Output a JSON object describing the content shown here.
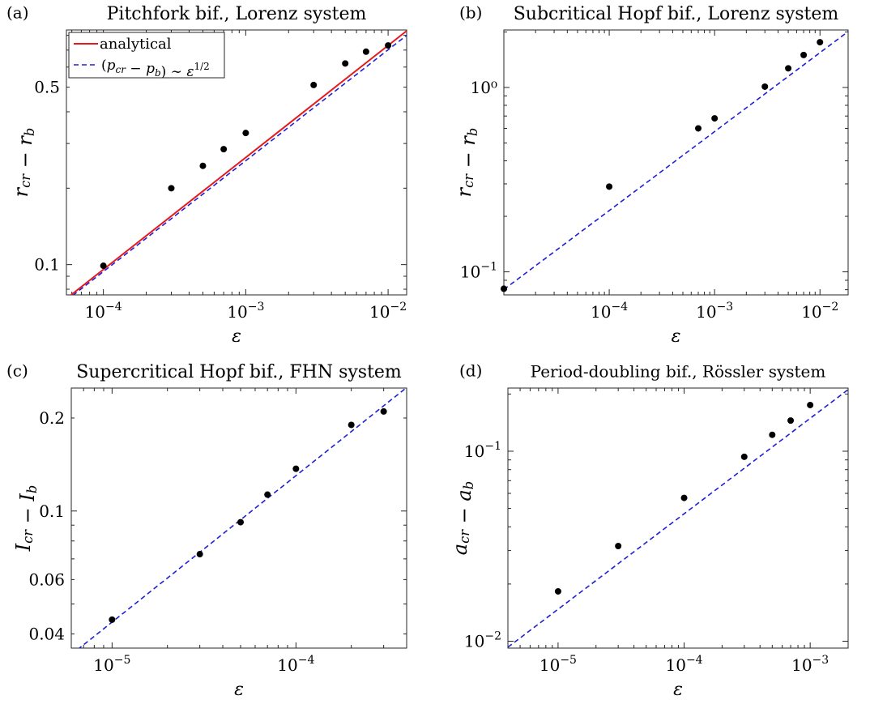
{
  "chart_data": [
    {
      "panel_label": "(a)",
      "type": "scatter",
      "title": "Pitchfork bif., Lorenz system",
      "xlabel": "ε",
      "ylabel": "r_cr − r_b",
      "xscale": "log",
      "yscale": "log",
      "xlim": [
        5.5e-05,
        0.0135
      ],
      "ylim": [
        0.076,
        0.84
      ],
      "xticks": [
        {
          "value": 0.0001,
          "base": "10",
          "exp": "−4"
        },
        {
          "value": 0.001,
          "base": "10",
          "exp": "−3"
        },
        {
          "value": 0.01,
          "base": "10",
          "exp": "−2"
        }
      ],
      "yticks": [
        {
          "value": 0.1,
          "label": "0.1"
        },
        {
          "value": 0.5,
          "label": "0.5"
        }
      ],
      "grid": false,
      "legend_position": "top-left",
      "legend": [
        {
          "label": "analytical",
          "style": "solid",
          "color": "#e41a1c"
        },
        {
          "label": "(p_cr − p_b) ∼ ε^1/2",
          "style": "dashed",
          "color": "#1f1fd6"
        }
      ],
      "x": [
        0.0001,
        0.0003,
        0.0005,
        0.0007,
        0.001,
        0.003,
        0.005,
        0.007,
        0.01
      ],
      "y": [
        0.099,
        0.2,
        0.245,
        0.285,
        0.33,
        0.51,
        0.62,
        0.69,
        0.73
      ],
      "analytical_line": {
        "x": [
          5.5e-05,
          0.0135
        ],
        "y": [
          0.0735,
          0.833
        ]
      },
      "fit_line": {
        "x": [
          5.5e-05,
          0.0135
        ],
        "y": [
          0.0723,
          0.8
        ]
      }
    },
    {
      "panel_label": "(b)",
      "type": "scatter",
      "title": "Subcritical Hopf bif., Lorenz system",
      "xlabel": "ε",
      "ylabel": "r_cr − r_b",
      "xscale": "log",
      "yscale": "log",
      "xlim": [
        1e-05,
        0.0185
      ],
      "ylim": [
        0.075,
        2.05
      ],
      "xticks": [
        {
          "value": 0.0001,
          "base": "10",
          "exp": "−4"
        },
        {
          "value": 0.001,
          "base": "10",
          "exp": "−3"
        },
        {
          "value": 0.01,
          "base": "10",
          "exp": "−2"
        }
      ],
      "yticks": [
        {
          "value": 0.1,
          "base": "10",
          "exp": "−1"
        },
        {
          "value": 1,
          "label": "10⁰"
        }
      ],
      "grid": false,
      "x": [
        1e-05,
        0.0001,
        0.0007,
        0.001,
        0.003,
        0.005,
        0.007,
        0.01
      ],
      "y": [
        0.081,
        0.29,
        0.6,
        0.68,
        1.01,
        1.27,
        1.5,
        1.76
      ],
      "fit_line": {
        "x": [
          1e-05,
          0.0185
        ],
        "y": [
          0.0802,
          2.01
        ]
      }
    },
    {
      "panel_label": "(c)",
      "type": "scatter",
      "title": "Supercritical Hopf bif., FHN system",
      "xlabel": "ε",
      "ylabel": "I_cr − I_b",
      "xscale": "log",
      "yscale": "log",
      "xlim": [
        6e-06,
        0.0004
      ],
      "ylim": [
        0.036,
        0.25
      ],
      "xticks": [
        {
          "value": 1e-05,
          "base": "10",
          "exp": "−5"
        },
        {
          "value": 0.0001,
          "base": "10",
          "exp": "−4"
        }
      ],
      "yticks": [
        {
          "value": 0.04,
          "label": "0.04"
        },
        {
          "value": 0.06,
          "label": "0.06"
        },
        {
          "value": 0.1,
          "label": "0.1"
        },
        {
          "value": 0.2,
          "label": "0.2"
        }
      ],
      "grid": false,
      "x": [
        1e-05,
        3e-05,
        5e-05,
        7e-05,
        0.0001,
        0.0002,
        0.0003
      ],
      "y": [
        0.0445,
        0.0725,
        0.092,
        0.113,
        0.137,
        0.19,
        0.21
      ],
      "fit_line": {
        "x": [
          6e-06,
          0.0004
        ],
        "y": [
          0.0343,
          0.251
        ]
      }
    },
    {
      "panel_label": "(d)",
      "type": "scatter",
      "title": "Period-doubling bif., Rössler system",
      "xlabel": "ε",
      "ylabel": "a_cr − a_b",
      "xscale": "log",
      "yscale": "log",
      "xlim": [
        4e-06,
        0.002
      ],
      "ylim": [
        0.0092,
        0.215
      ],
      "xticks": [
        {
          "value": 1e-05,
          "base": "10",
          "exp": "−5"
        },
        {
          "value": 0.0001,
          "base": "10",
          "exp": "−4"
        },
        {
          "value": 0.001,
          "base": "10",
          "exp": "−3"
        }
      ],
      "yticks": [
        {
          "value": 0.01,
          "base": "10",
          "exp": "−2"
        },
        {
          "value": 0.1,
          "base": "10",
          "exp": "−1"
        }
      ],
      "grid": false,
      "x": [
        1e-05,
        3e-05,
        0.0001,
        0.0003,
        0.0005,
        0.0007,
        0.001
      ],
      "y": [
        0.0183,
        0.0317,
        0.0568,
        0.0935,
        0.122,
        0.145,
        0.175
      ],
      "fit_line": {
        "x": [
          4e-06,
          0.002
        ],
        "y": [
          0.0093,
          0.211
        ]
      }
    }
  ]
}
